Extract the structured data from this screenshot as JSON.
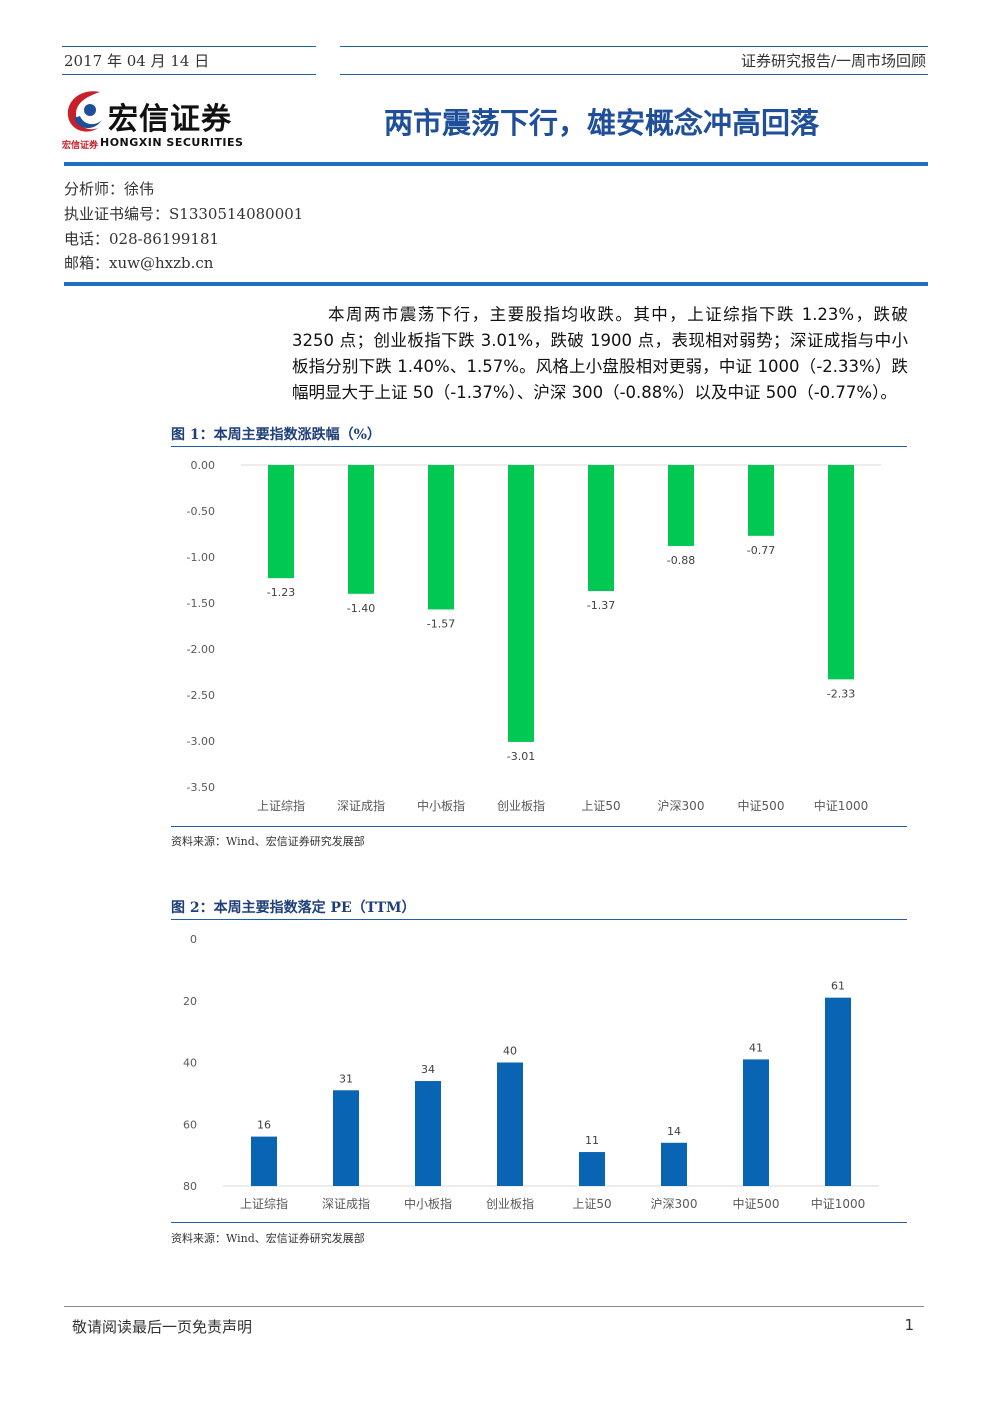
{
  "header": {
    "date": "2017 年 04 月 14 日",
    "report_type": "证券研究报告/一周市场回顾"
  },
  "logo": {
    "name": "宏信证券",
    "small": "宏信证券",
    "english": "HONGXIN SECURITIES"
  },
  "title": "两市震荡下行，雄安概念冲高回落",
  "analyst": {
    "name": "分析师：徐伟",
    "cert": "执业证书编号：S1330514080001",
    "phone": "电话：028-86199181",
    "email": "邮箱：xuw@hxzb.cn"
  },
  "summary": "本周两市震荡下行，主要股指均收跌。其中，上证综指下跌 1.23%，跌破 3250 点；创业板指下跌 3.01%，跌破 1900 点，表现相对弱势；深证成指与中小板指分别下跌 1.40%、1.57%。风格上小盘股相对更弱，中证 1000（-2.33%）跌幅明显大于上证 50（-1.37%）、沪深 300（-0.88%）以及中证 500（-0.77%）。",
  "figure1": {
    "title": "图 1：本周主要指数涨跌幅（%）",
    "source": "资料来源：Wind、宏信证券研究发展部"
  },
  "figure2": {
    "title": "图 2：本周主要指数落定 PE（TTM）",
    "source": "资料来源：Wind、宏信证券研究发展部"
  },
  "chart_data": [
    {
      "type": "bar",
      "categories": [
        "上证综指",
        "深证成指",
        "中小板指",
        "创业板指",
        "上证50",
        "沪深300",
        "中证500",
        "中证1000"
      ],
      "values": [
        -1.23,
        -1.4,
        -1.57,
        -3.01,
        -1.37,
        -0.88,
        -0.77,
        -2.33
      ],
      "value_labels": [
        "-1.23",
        "-1.40",
        "-1.57",
        "-3.01",
        "-1.37",
        "-0.88",
        "-0.77",
        "-2.33"
      ],
      "yticks": [
        "0.00",
        "-0.50",
        "-1.00",
        "-1.50",
        "-2.00",
        "-2.50",
        "-3.00",
        "-3.50"
      ],
      "ylim": [
        -3.5,
        0
      ],
      "color": "#00c853",
      "grid": false
    },
    {
      "type": "bar",
      "categories": [
        "上证综指",
        "深证成指",
        "中小板指",
        "创业板指",
        "上证50",
        "沪深300",
        "中证500",
        "中证1000"
      ],
      "values": [
        16,
        31,
        34,
        40,
        11,
        14,
        41,
        61
      ],
      "value_labels": [
        "16",
        "31",
        "34",
        "40",
        "11",
        "14",
        "41",
        "61"
      ],
      "yticks": [
        "0",
        "20",
        "40",
        "60",
        "80"
      ],
      "ylim": [
        0,
        80
      ],
      "color": "#0a64b4",
      "grid": false
    }
  ],
  "footer": {
    "disclaimer": "敬请阅读最后一页免责声明",
    "page": "1"
  }
}
